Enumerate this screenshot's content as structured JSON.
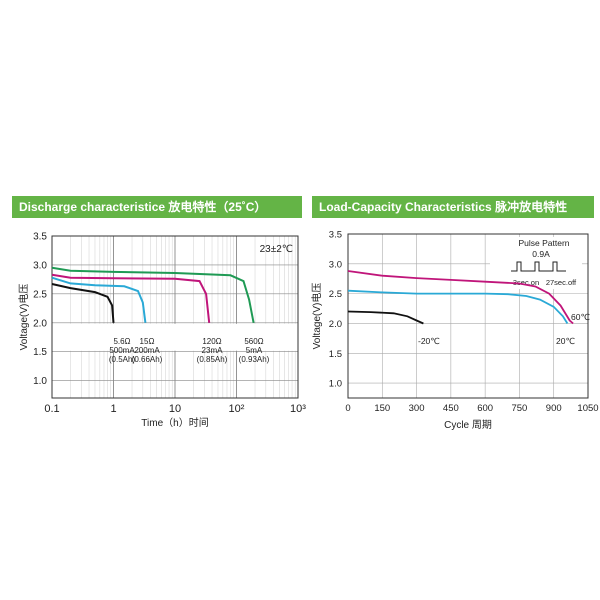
{
  "chart_data": [
    {
      "type": "line",
      "title": "Discharge characteristice 放电特性（25˚C）",
      "xlabel": "Time（h）时间",
      "ylabel": "Voltage(V)电压",
      "x_scale": "log",
      "xlim": [
        0.1,
        1000
      ],
      "ylim": [
        0.7,
        3.5
      ],
      "x_ticks": [
        "0.1",
        "1",
        "10",
        "10²",
        "10³"
      ],
      "y_ticks": [
        "3.5",
        "3.0",
        "2.5",
        "2.0",
        "1.5",
        "1.0"
      ],
      "condition": "23±2℃",
      "grid": true,
      "series": [
        {
          "name": "5.6Ω 500mA (0.5Ah)",
          "color": "#111111",
          "points": [
            [
              0.1,
              2.67
            ],
            [
              0.2,
              2.6
            ],
            [
              0.5,
              2.53
            ],
            [
              0.8,
              2.45
            ],
            [
              0.95,
              2.3
            ],
            [
              1.0,
              2.0
            ]
          ]
        },
        {
          "name": "15Ω 200mA (0.66Ah)",
          "color": "#2aa9d6",
          "points": [
            [
              0.1,
              2.78
            ],
            [
              0.2,
              2.68
            ],
            [
              0.5,
              2.65
            ],
            [
              1.5,
              2.63
            ],
            [
              2.5,
              2.55
            ],
            [
              3.0,
              2.35
            ],
            [
              3.3,
              2.0
            ]
          ]
        },
        {
          "name": "120Ω 23mA (0.85Ah)",
          "color": "#c0157a",
          "points": [
            [
              0.1,
              2.83
            ],
            [
              0.2,
              2.78
            ],
            [
              1,
              2.77
            ],
            [
              10,
              2.76
            ],
            [
              25,
              2.72
            ],
            [
              32,
              2.5
            ],
            [
              36,
              2.0
            ]
          ]
        },
        {
          "name": "560Ω 5mA (0.93Ah)",
          "color": "#1f9a54",
          "points": [
            [
              0.1,
              2.95
            ],
            [
              0.2,
              2.9
            ],
            [
              1,
              2.88
            ],
            [
              10,
              2.86
            ],
            [
              80,
              2.82
            ],
            [
              130,
              2.72
            ],
            [
              160,
              2.4
            ],
            [
              190,
              2.0
            ]
          ]
        }
      ],
      "annotations": [
        {
          "resistance": "5.6Ω",
          "current": "500mA",
          "capacity": "(0.5Ah)"
        },
        {
          "resistance": "15Ω",
          "current": "200mA",
          "capacity": "(0.66Ah)"
        },
        {
          "resistance": "120Ω",
          "current": "23mA",
          "capacity": "(0.85Ah)"
        },
        {
          "resistance": "560Ω",
          "current": "5mA",
          "capacity": "(0.93Ah)"
        }
      ]
    },
    {
      "type": "line",
      "title": "Load-Capacity Characteristics 脉冲放电特性",
      "xlabel": "Cycle 周期",
      "ylabel": "Voltage(V)电压",
      "xlim": [
        0,
        1050
      ],
      "ylim": [
        0.75,
        3.5
      ],
      "x_ticks": [
        "0",
        "150",
        "300",
        "450",
        "600",
        "750",
        "900",
        "1050"
      ],
      "y_ticks": [
        "3.5",
        "3.0",
        "2.5",
        "2.0",
        "1.5",
        "1.0"
      ],
      "grid": true,
      "pulse_inset": {
        "title": "Pulse Pattern",
        "current": "0.9A",
        "on": "3sec.on",
        "off": "27sec.off"
      },
      "series": [
        {
          "name": "60℃",
          "color": "#c0157a",
          "points": [
            [
              0,
              2.88
            ],
            [
              150,
              2.8
            ],
            [
              300,
              2.76
            ],
            [
              450,
              2.73
            ],
            [
              600,
              2.7
            ],
            [
              750,
              2.67
            ],
            [
              820,
              2.62
            ],
            [
              880,
              2.5
            ],
            [
              930,
              2.3
            ],
            [
              970,
              2.05
            ],
            [
              985,
              2.0
            ]
          ]
        },
        {
          "name": "20℃",
          "color": "#2aa9d6",
          "points": [
            [
              0,
              2.55
            ],
            [
              150,
              2.52
            ],
            [
              300,
              2.5
            ],
            [
              450,
              2.5
            ],
            [
              600,
              2.5
            ],
            [
              700,
              2.49
            ],
            [
              780,
              2.46
            ],
            [
              840,
              2.4
            ],
            [
              900,
              2.28
            ],
            [
              940,
              2.12
            ],
            [
              960,
              2.0
            ]
          ]
        },
        {
          "name": "-20℃",
          "color": "#111111",
          "points": [
            [
              0,
              2.2
            ],
            [
              100,
              2.19
            ],
            [
              200,
              2.17
            ],
            [
              260,
              2.12
            ],
            [
              300,
              2.05
            ],
            [
              330,
              2.0
            ]
          ]
        }
      ],
      "labels": [
        "-20℃",
        "20℃",
        "60℃"
      ]
    }
  ]
}
